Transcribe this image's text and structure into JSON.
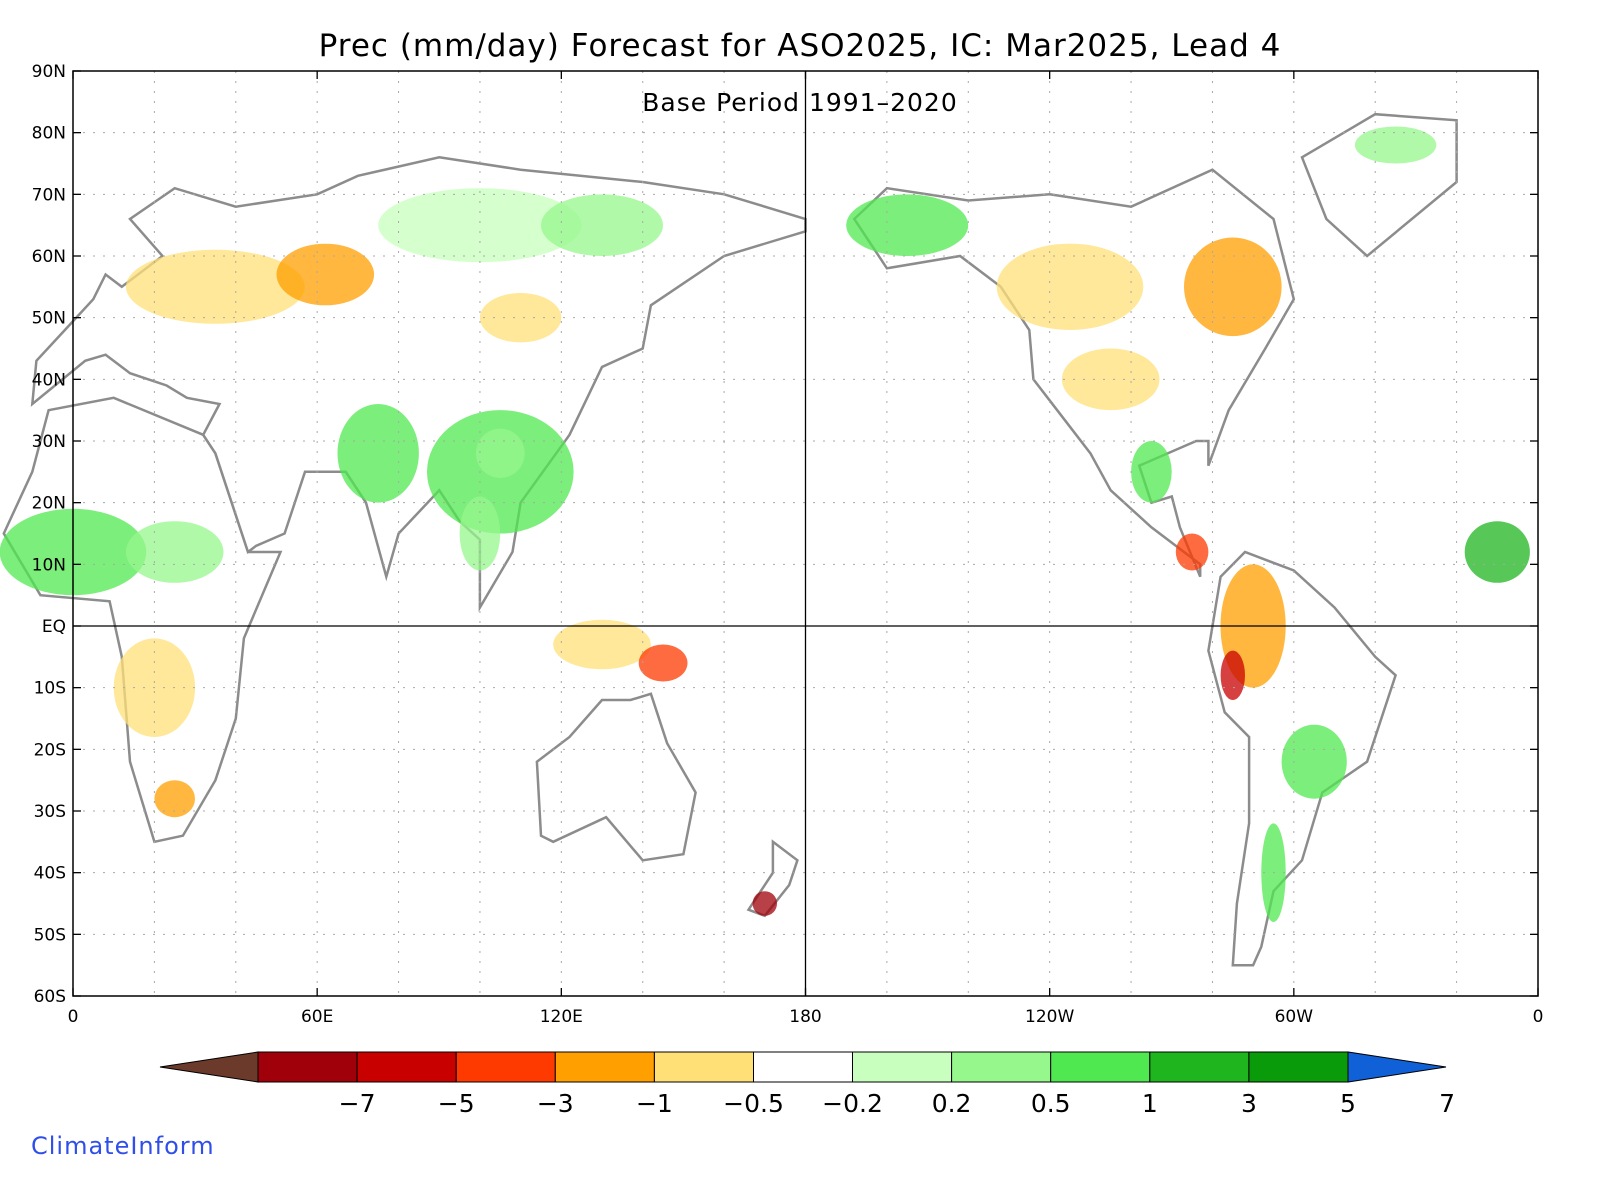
{
  "title": "Prec (mm/day) Forecast for ASO2025, IC: Mar2025, Lead 4",
  "subtitle": "Base Period 1991–2020",
  "credit": "ClimateInform",
  "map": {
    "lat_ticks": [
      "90N",
      "80N",
      "70N",
      "60N",
      "50N",
      "40N",
      "30N",
      "20N",
      "10N",
      "EQ",
      "10S",
      "20S",
      "30S",
      "40S",
      "50S",
      "60S"
    ],
    "lon_ticks": [
      "0",
      "60E",
      "120E",
      "180",
      "120W",
      "60W",
      "0"
    ],
    "lon_range": [
      0,
      360
    ],
    "lat_range": [
      -60,
      90
    ],
    "grid": true,
    "reference_lines": [
      "equator",
      "dateline"
    ]
  },
  "colorbar": {
    "labels": [
      "−7",
      "−5",
      "−3",
      "−1",
      "−0.5",
      "−0.2",
      "0.2",
      "0.5",
      "1",
      "3",
      "5",
      "7"
    ],
    "colors": [
      "#6b3a2a",
      "#a0000a",
      "#c80000",
      "#ff3a00",
      "#ff9f00",
      "#ffe077",
      "#ffffff",
      "#c8ffbe",
      "#96f78c",
      "#50e850",
      "#1fb51f",
      "#0a9b0a",
      "#1060d8"
    ],
    "extend": "both"
  }
}
